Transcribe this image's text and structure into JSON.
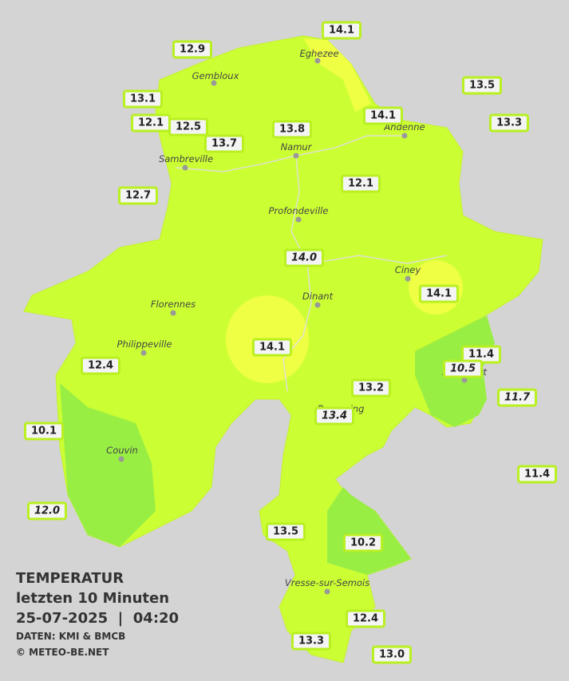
{
  "legend": {
    "title": "TEMPERATUR",
    "period": "letzten 10 Minuten",
    "datetime": "25-07-2025  |  04:20",
    "source": "DATEN: KMI & BMCB",
    "copyright": "© METEO-BE.NET"
  },
  "cities": [
    "Eghezee",
    "Gembloux",
    "Andenne",
    "Namur",
    "Sambreville",
    "Profondeville",
    "Ciney",
    "Dinant",
    "Florennes",
    "Philippeville",
    "Rochefort",
    "Beauraing",
    "Couvin",
    "Vresse-sur-Semois"
  ],
  "readings": [
    {
      "value": "14.1",
      "italic": false
    },
    {
      "value": "12.9",
      "italic": false
    },
    {
      "value": "13.5",
      "italic": false
    },
    {
      "value": "13.1",
      "italic": false
    },
    {
      "value": "14.1",
      "italic": false
    },
    {
      "value": "13.3",
      "italic": false
    },
    {
      "value": "12.1",
      "italic": false
    },
    {
      "value": "12.5",
      "italic": false
    },
    {
      "value": "13.8",
      "italic": false
    },
    {
      "value": "13.7",
      "italic": false
    },
    {
      "value": "12.1",
      "italic": false
    },
    {
      "value": "12.7",
      "italic": false
    },
    {
      "value": "14.0",
      "italic": true
    },
    {
      "value": "14.1",
      "italic": false
    },
    {
      "value": "14.1",
      "italic": false
    },
    {
      "value": "11.4",
      "italic": false
    },
    {
      "value": "10.5",
      "italic": true
    },
    {
      "value": "12.4",
      "italic": false
    },
    {
      "value": "13.2",
      "italic": false
    },
    {
      "value": "11.7",
      "italic": true
    },
    {
      "value": "13.4",
      "italic": true
    },
    {
      "value": "10.1",
      "italic": false
    },
    {
      "value": "11.4",
      "italic": false
    },
    {
      "value": "12.0",
      "italic": true
    },
    {
      "value": "13.5",
      "italic": false
    },
    {
      "value": "10.2",
      "italic": false
    },
    {
      "value": "12.4",
      "italic": false
    },
    {
      "value": "13.3",
      "italic": false
    },
    {
      "value": "13.0",
      "italic": false
    }
  ]
}
